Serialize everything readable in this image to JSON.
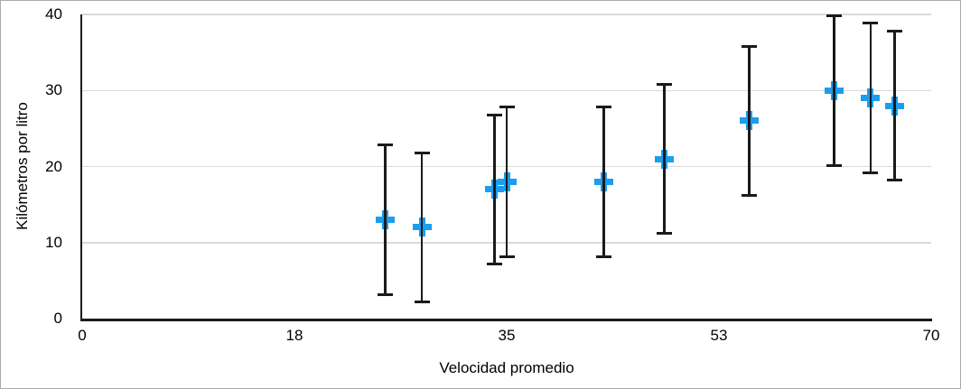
{
  "chart_data": {
    "type": "scatter",
    "title": "",
    "xlabel": "Velocidad promedio",
    "ylabel": "Kilómetros por litro",
    "xlim": [
      0,
      70
    ],
    "ylim": [
      0,
      40
    ],
    "x_tick_labels": [
      "0",
      "18",
      "35",
      "53",
      "70"
    ],
    "y_tick_values": [
      0,
      10,
      20,
      30,
      40
    ],
    "grid": "horizontal-only",
    "legend_position": "none",
    "marker_style": "plus",
    "error_bars": {
      "type": "fixed",
      "plus": 10,
      "minus": 10
    },
    "points": [
      {
        "x": 25,
        "y": 13
      },
      {
        "x": 28,
        "y": 12
      },
      {
        "x": 34,
        "y": 17
      },
      {
        "x": 35,
        "y": 18
      },
      {
        "x": 43,
        "y": 18
      },
      {
        "x": 48,
        "y": 21
      },
      {
        "x": 55,
        "y": 26
      },
      {
        "x": 62,
        "y": 30
      },
      {
        "x": 65,
        "y": 29
      },
      {
        "x": 67,
        "y": 28
      }
    ]
  },
  "colors": {
    "marker": "#1B9DF0",
    "error_bar": "#1a1a1a",
    "axis_line": "#1a1a1a",
    "gridline": "#d9d9d9",
    "text": "#000000",
    "background": "#ffffff",
    "frame_border": "#ababab"
  }
}
